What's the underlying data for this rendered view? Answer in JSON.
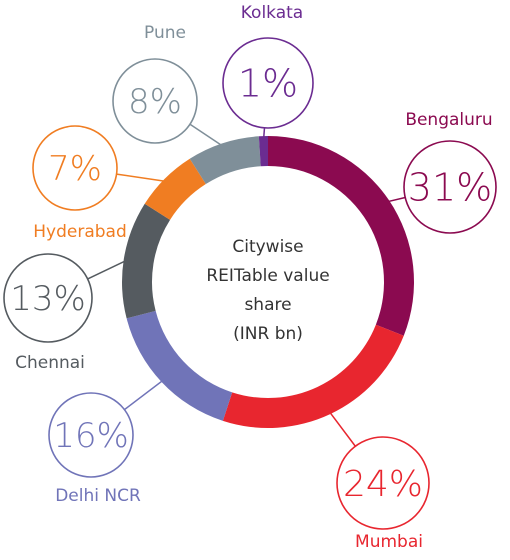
{
  "chart_data": {
    "type": "pie",
    "variant": "donut",
    "center_label": [
      "Citywise",
      "REITable value",
      "share",
      "(INR bn)"
    ],
    "slices": [
      {
        "label": "Bengaluru",
        "value": 31,
        "display": "31%",
        "color": "#8b0a50"
      },
      {
        "label": "Mumbai",
        "value": 24,
        "display": "24%",
        "color": "#e8262f"
      },
      {
        "label": "Delhi NCR",
        "value": 16,
        "display": "16%",
        "color": "#7074b8"
      },
      {
        "label": "Chennai",
        "value": 13,
        "display": "13%",
        "color": "#555b60"
      },
      {
        "label": "Hyderabad",
        "value": 7,
        "display": "7%",
        "color": "#f07d22"
      },
      {
        "label": "Pune",
        "value": 8,
        "display": "8%",
        "color": "#7f8f99"
      },
      {
        "label": "Kolkata",
        "value": 1,
        "display": "1%",
        "color": "#6b2c91"
      }
    ]
  }
}
